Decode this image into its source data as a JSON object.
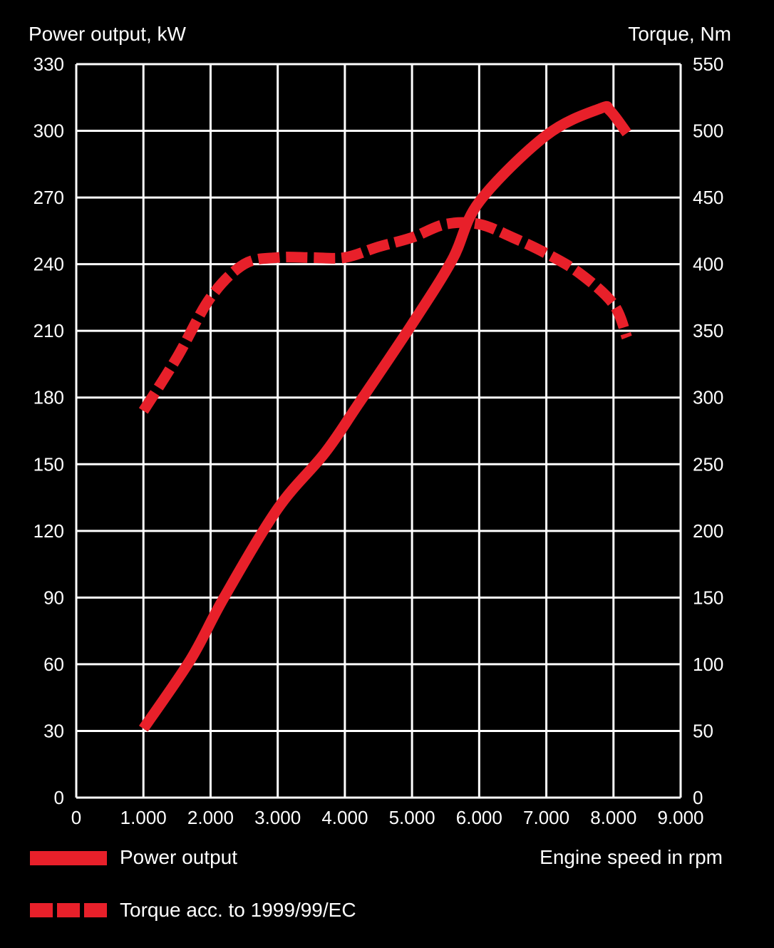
{
  "chart_data": {
    "type": "line",
    "ylabel_left": "Power output, kW",
    "ylabel_right": "Torque, Nm",
    "xlabel": "Engine speed in rpm",
    "xlim": [
      0,
      9000
    ],
    "ylim_left": [
      0,
      330
    ],
    "ylim_right": [
      0,
      550
    ],
    "x_ticks": [
      "0",
      "1.000",
      "2.000",
      "3.000",
      "4.000",
      "5.000",
      "6.000",
      "7.000",
      "8.000",
      "9.000"
    ],
    "y_ticks_left": [
      "0",
      "30",
      "60",
      "90",
      "120",
      "150",
      "180",
      "210",
      "240",
      "270",
      "300",
      "330"
    ],
    "y_ticks_right": [
      "0",
      "50",
      "100",
      "150",
      "200",
      "250",
      "300",
      "350",
      "400",
      "450",
      "500",
      "550"
    ],
    "grid": true,
    "legend_placement": "bottom",
    "series": [
      {
        "name": "Power output",
        "axis": "left",
        "style": "solid",
        "color": "#e8202a",
        "x": [
          1000,
          1700,
          2200,
          3000,
          3700,
          4200,
          5000,
          5600,
          6000,
          7000,
          7800,
          7950,
          8200
        ],
        "y": [
          31,
          62,
          90,
          130,
          155,
          177,
          213,
          242,
          268,
          298,
          310,
          309,
          299
        ]
      },
      {
        "name": "Torque acc. to 1999/99/EC",
        "axis": "right",
        "style": "dashed",
        "color": "#e8202a",
        "x": [
          1000,
          1500,
          2000,
          2500,
          3000,
          3500,
          4000,
          4500,
          5000,
          5500,
          6000,
          6500,
          7000,
          7500,
          8000,
          8200
        ],
        "y": [
          290,
          330,
          375,
          400,
          405,
          405,
          405,
          413,
          420,
          430,
          430,
          420,
          408,
          393,
          370,
          345
        ]
      }
    ]
  }
}
